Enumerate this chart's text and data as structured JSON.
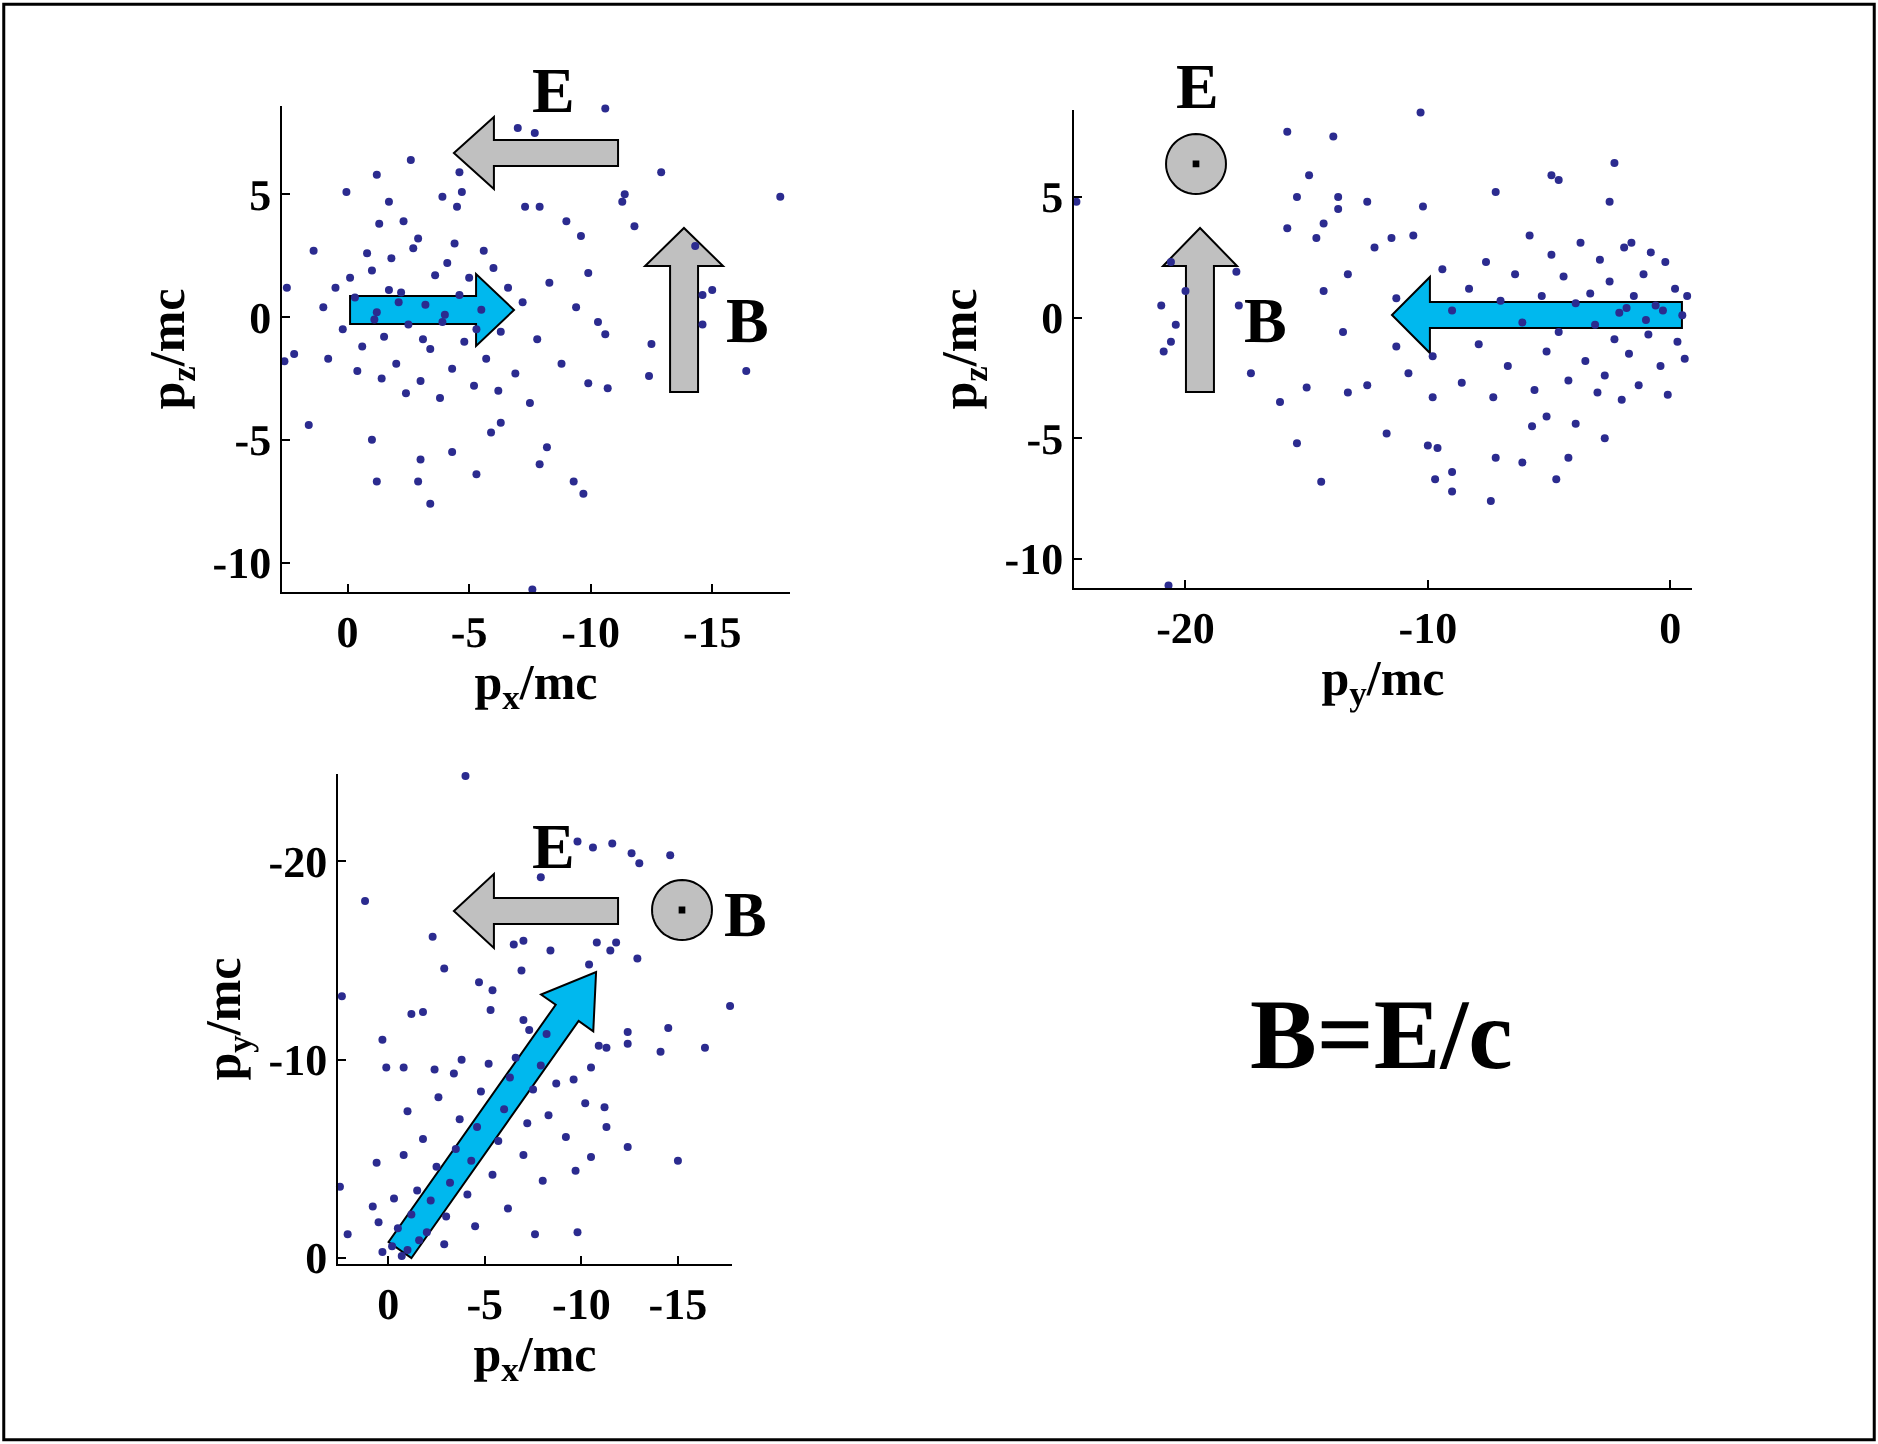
{
  "chart_data": [
    {
      "type": "scatter",
      "xlabel": "p$_{x}$/mc",
      "ylabel": "p$_{z}$/mc",
      "xlim": [
        2.7,
        -18.2
      ],
      "ylim": [
        -11.2,
        8.6
      ],
      "xticks": [
        0,
        -5,
        -10,
        -15
      ],
      "yticks": [
        -10,
        -5,
        0,
        5
      ],
      "marker": "circle",
      "annotations": [
        "E",
        "B"
      ],
      "series": [
        {
          "color": "#2b2b8f",
          "x": [
            -10.6,
            -7.0,
            -7.7,
            -2.6,
            -4.6,
            -12.9,
            -17.8,
            0.05,
            -1.2,
            -11.3,
            -11.4,
            -11.8,
            -14.3,
            -15.0,
            -14.6,
            -14.6,
            -16.4,
            -12.4,
            -12.5,
            -9.9,
            -10.7,
            -10.6,
            -8.2,
            -7.9,
            -9.3,
            -9.7,
            -7.6,
            -3.4,
            -2.9,
            -1.2,
            -5.3,
            -3.0,
            -4.3,
            -1.0,
            1.6,
            2.6,
            2.5,
            2.2,
            1.4,
            -7.5,
            -6.3,
            -5.9,
            -9.6,
            -9.0,
            -7.9,
            -7.3,
            -4.5,
            -4.7,
            -3.9,
            -1.7,
            -2.3,
            -1.3,
            0.5,
            0.2,
            -0.3,
            -0.6,
            -1.0,
            -1.2,
            -1.5,
            -1.8,
            -2.0,
            -2.2,
            -2.5,
            -2.7,
            -3.0,
            -3.2,
            -3.4,
            -3.6,
            -3.9,
            -4.1,
            -4.3,
            -4.6,
            -4.8,
            -5.0,
            -5.2,
            -5.5,
            -5.7,
            -6.0,
            -6.3,
            -6.6,
            -6.9,
            -7.2,
            0.8,
            1.0,
            -0.8,
            -1.4,
            -2.4,
            -3.8,
            -2.9,
            -4.4,
            -5.6,
            -6.2,
            -0.1,
            -1.7,
            -3.1,
            -4.0,
            -5.3,
            -7.8,
            -8.3,
            -8.8,
            -9.4,
            -9.9,
            -10.3,
            -1.1,
            -2.1,
            -0.4
          ],
          "values": [
            8.5,
            7.7,
            7.5,
            6.4,
            5.9,
            5.9,
            4.9,
            5.1,
            5.8,
            4.7,
            5.0,
            3.7,
            2.9,
            1.1,
            0.9,
            -0.3,
            -2.2,
            -2.4,
            -1.1,
            -2.7,
            -2.9,
            -0.7,
            -5.3,
            -6.0,
            -6.7,
            -7.2,
            -11.1,
            -7.6,
            -6.7,
            -6.7,
            -6.4,
            -5.8,
            -5.5,
            -5.0,
            -4.4,
            -1.8,
            1.2,
            -1.5,
            2.7,
            -3.5,
            -4.3,
            -4.7,
            3.3,
            3.9,
            4.5,
            4.5,
            4.5,
            5.1,
            4.9,
            4.7,
            3.9,
            3.8,
            1.2,
            -0.5,
            0.8,
            -1.2,
            1.9,
            0.2,
            -0.8,
            2.4,
            -1.9,
            1.0,
            -0.3,
            2.8,
            -2.6,
            0.5,
            -1.3,
            1.7,
            -0.2,
            2.2,
            -2.1,
            0.9,
            -1.0,
            1.6,
            -2.8,
            0.3,
            -1.7,
            2.0,
            -0.6,
            1.2,
            -2.3,
            0.6,
            -1.7,
            0.4,
            2.6,
            -2.5,
            -3.1,
            -3.3,
            3.2,
            3.0,
            2.7,
            -3.0,
            1.6,
            1.1,
            -0.9,
            0.1,
            -0.5,
            -0.9,
            1.4,
            -1.9,
            0.4,
            1.8,
            -0.2,
            -0.1,
            0.6,
            -2.2
          ]
        }
      ]
    },
    {
      "type": "scatter",
      "xlabel": "p$_{y}$/mc",
      "ylabel": "p$_{z}$/mc",
      "xlim": [
        -24.6,
        0.9
      ],
      "ylim": [
        -11.2,
        8.6
      ],
      "xticks": [
        -20,
        -10,
        0
      ],
      "yticks": [
        -10,
        -5,
        0,
        5
      ],
      "marker": "circle",
      "annotations": [
        "E",
        "B"
      ],
      "series": [
        {
          "color": "#2b2b8f",
          "x": [
            -24.5,
            -20.7,
            -10.3,
            -15.8,
            -13.9,
            -14.9,
            -15.4,
            -13.7,
            -13.7,
            -14.3,
            -14.6,
            -15.8,
            -12.5,
            -10.2,
            -4.9,
            -4.6,
            -2.3,
            -2.5,
            -7.2,
            -21.0,
            -20.9,
            -20.6,
            -20.4,
            -20.0,
            -20.6,
            -17.8,
            -17.3,
            -17.9,
            -16.1,
            -15.4,
            -14.4,
            -15.0,
            -13.5,
            -14.3,
            -13.3,
            -12.5,
            -11.7,
            -9.8,
            -10.0,
            -9.6,
            -9.7,
            -9.0,
            -9.0,
            -7.4,
            -7.2,
            -6.1,
            -4.2,
            -4.7,
            -2.7,
            -5.7,
            -3.9,
            -5.1,
            -12.2,
            -11.5,
            -10.6,
            -13.3,
            -11.3,
            -11.3,
            -10.8,
            0.5,
            0.3,
            0.2,
            -0.2,
            -0.4,
            -0.6,
            -0.9,
            -1.1,
            -1.3,
            -1.5,
            -1.7,
            -1.9,
            -2.1,
            -2.3,
            -2.5,
            -2.7,
            -2.9,
            -3.1,
            -3.3,
            -3.5,
            -3.7,
            -3.9,
            -4.2,
            -4.4,
            -4.6,
            -4.9,
            -5.1,
            -5.3,
            -5.6,
            -5.8,
            -6.1,
            -6.4,
            -6.7,
            -7.0,
            -7.3,
            -7.6,
            -7.9,
            -8.3,
            -8.6,
            -9.0,
            -9.4,
            -9.8,
            -0.1,
            -0.8,
            -1.6,
            -2.0,
            -3.0,
            0.7,
            0.6,
            -0.3,
            -1.0,
            -1.8
          ],
          "values": [
            4.8,
            -11.1,
            8.5,
            7.7,
            7.5,
            5.9,
            5.0,
            5.0,
            4.5,
            3.9,
            3.3,
            3.7,
            4.8,
            4.6,
            5.9,
            5.7,
            6.4,
            4.8,
            5.2,
            0.5,
            -1.4,
            -1.0,
            -0.3,
            1.1,
            2.3,
            0.5,
            -2.3,
            1.9,
            -3.5,
            -5.2,
            -6.8,
            -2.9,
            -0.6,
            1.1,
            -3.1,
            -2.8,
            -4.8,
            -3.3,
            -5.3,
            -5.4,
            -6.7,
            -6.4,
            -7.2,
            -7.6,
            -5.8,
            -6.0,
            -5.8,
            -6.7,
            -5.0,
            -4.5,
            -4.4,
            -4.1,
            2.9,
            3.3,
            3.4,
            1.8,
            0.8,
            -1.2,
            -2.3,
            0.1,
            -1.0,
            1.2,
            2.3,
            -2.0,
            0.5,
            -0.7,
            1.8,
            -2.8,
            0.9,
            -1.5,
            2.9,
            0.2,
            -0.9,
            1.5,
            -2.4,
            2.4,
            -0.3,
            1.0,
            -1.8,
            3.1,
            0.6,
            -2.6,
            1.7,
            -0.6,
            2.6,
            -1.4,
            0.9,
            -3.0,
            3.4,
            -0.2,
            1.8,
            -2.0,
            0.7,
            -3.3,
            2.3,
            -1.1,
            1.2,
            -2.7,
            0.3,
            2.0,
            -1.6,
            -3.2,
            2.7,
            3.1,
            -3.4,
            -3.1,
            0.9,
            -1.7,
            0.3,
            -0.1,
            0.4
          ]
        }
      ]
    },
    {
      "type": "scatter",
      "xlabel": "p$_{x}$/mc",
      "ylabel": "p$_{y}$/mc",
      "xlim": [
        2.6,
        -17.8
      ],
      "ylim": [
        0.3,
        -24.4
      ],
      "xticks": [
        0,
        -5,
        -10,
        -15
      ],
      "yticks": [
        0,
        -10,
        -20
      ],
      "marker": "circle",
      "annotations": [
        "E",
        "B"
      ],
      "series": [
        {
          "color": "#2b2b8f",
          "x": [
            -4.0,
            1.2,
            2.4,
            2.5,
            2.1,
            -9.8,
            -10.6,
            -11.6,
            -12.6,
            -13.0,
            -14.6,
            -7.9,
            -2.3,
            -2.9,
            -4.7,
            -6.5,
            -7.0,
            -8.4,
            -6.9,
            -10.8,
            -11.8,
            -11.5,
            -12.9,
            -10.4,
            -17.7,
            -14.5,
            -12.4,
            -12.4,
            -14.1,
            -16.4,
            -15.0,
            -12.4,
            -11.3,
            -10.9,
            -7.6,
            -9.8,
            -1.2,
            -1.8,
            0.3,
            0.1,
            -0.8,
            -11.2,
            -11.3,
            -10.5,
            -9.7,
            -5.4,
            -5.3,
            -7.0,
            -8.2,
            -7.3,
            0.3,
            -0.2,
            -0.5,
            0.5,
            -1.0,
            -1.2,
            0.8,
            -1.5,
            -0.3,
            -2.0,
            -2.2,
            -2.5,
            0.6,
            -0.8,
            -1.8,
            -3.0,
            -3.2,
            -3.5,
            -3.7,
            -1.0,
            -2.6,
            -4.1,
            -4.3,
            -4.6,
            -4.8,
            -5.2,
            -2.4,
            -5.4,
            -5.7,
            -6.0,
            -6.3,
            -6.6,
            -3.8,
            -7.0,
            -7.2,
            -7.5,
            -7.9,
            -8.3,
            -8.7,
            -9.2,
            -9.6,
            -10.2,
            -10.5,
            -8.0,
            -6.2,
            -1.6,
            -0.7,
            -2.9,
            -4.5,
            -3.4
          ],
          "values": [
            -24.3,
            -18.0,
            -13.2,
            -3.6,
            -1.2,
            -21.0,
            -20.7,
            -20.9,
            -20.4,
            -19.9,
            -20.3,
            -19.2,
            -16.2,
            -14.6,
            -13.9,
            -15.8,
            -16.0,
            -15.5,
            -14.5,
            -15.9,
            -15.9,
            -15.5,
            -15.1,
            -14.8,
            -12.7,
            -11.6,
            -11.4,
            -10.8,
            -10.4,
            -10.6,
            -4.9,
            -5.6,
            -10.6,
            -10.7,
            -1.2,
            -1.3,
            -12.3,
            -12.4,
            -11.0,
            -9.6,
            -9.6,
            -7.6,
            -6.6,
            -5.1,
            -4.4,
            -13.5,
            -12.5,
            -12.0,
            -11.3,
            -11.5,
            -0.3,
            -0.6,
            -1.5,
            -1.8,
            -0.4,
            -2.2,
            -2.6,
            -3.4,
            -3.0,
            -1.3,
            -2.9,
            -4.6,
            -4.8,
            -5.2,
            -6.0,
            -2.1,
            -3.8,
            -5.5,
            -7.0,
            -7.4,
            -8.1,
            -3.2,
            -4.9,
            -6.6,
            -8.4,
            -9.8,
            -9.5,
            -4.2,
            -5.9,
            -7.5,
            -9.1,
            -10.1,
            -10.0,
            -5.2,
            -6.8,
            -8.5,
            -9.7,
            -7.2,
            -8.8,
            -6.1,
            -9.0,
            -7.8,
            -9.6,
            -3.9,
            -2.5,
            -0.9,
            -0.1,
            -0.7,
            -1.6,
            -9.3
          ]
        }
      ]
    },
    {
      "type": "other",
      "annotations": [
        "B=E/c"
      ]
    }
  ]
}
